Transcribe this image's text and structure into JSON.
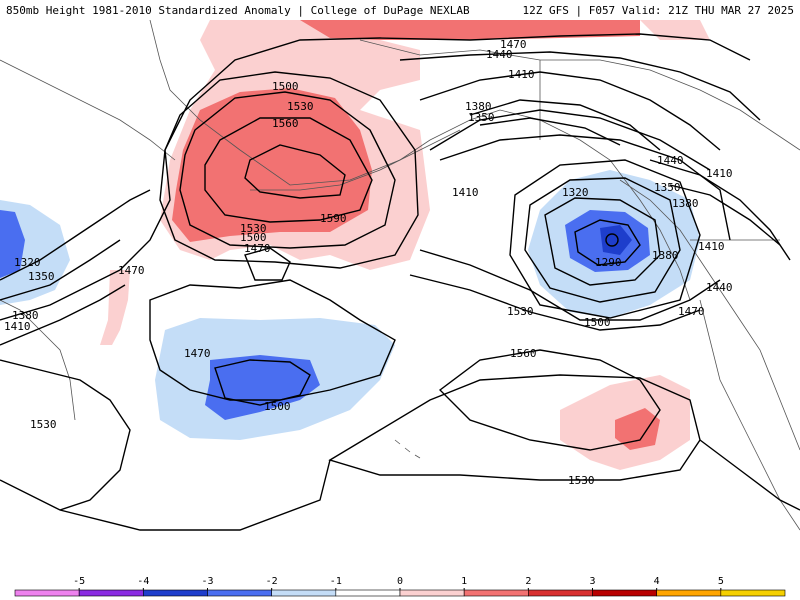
{
  "header": {
    "title": "850mb Height 1981-2010 Standardized Anomaly | College of DuPage NEXLAB",
    "run_info": "12Z GFS | F057 Valid: 21Z THU MAR 27 2025"
  },
  "colors": {
    "neg5": "#ee82ee",
    "neg4": "#8a2be2",
    "neg3": "#1e3ecc",
    "neg2": "#4a6ef0",
    "neg1": "#c4ddf7",
    "zero": "#ffffff",
    "pos1": "#fbd0d0",
    "pos2": "#f27272",
    "pos3": "#d83030",
    "pos4": "#b80000",
    "pos5": "#ffa500",
    "pos6": "#f5d000"
  },
  "contour_labels": [
    {
      "id": "c1470-top",
      "text": "1470"
    },
    {
      "id": "c1440-top",
      "text": "1440"
    },
    {
      "id": "c1410-top",
      "text": "1410"
    },
    {
      "id": "c1500-nw",
      "text": "1500"
    },
    {
      "id": "c1530-nw",
      "text": "1530"
    },
    {
      "id": "c1560-nw",
      "text": "1560"
    },
    {
      "id": "c1590-nw",
      "text": "1590"
    },
    {
      "id": "c1530-mid",
      "text": "1530"
    },
    {
      "id": "c1500-mid",
      "text": "1500"
    },
    {
      "id": "c1470-mid",
      "text": "1470"
    },
    {
      "id": "c1380-ne",
      "text": "1380"
    },
    {
      "id": "c1350-ne",
      "text": "1350"
    },
    {
      "id": "c1410-ne",
      "text": "1410"
    },
    {
      "id": "c1320-low",
      "text": "1320"
    },
    {
      "id": "c1350-low",
      "text": "1350"
    },
    {
      "id": "c1380-coast",
      "text": "1380"
    },
    {
      "id": "c1290-low",
      "text": "1290"
    },
    {
      "id": "c1380-low",
      "text": "1380"
    },
    {
      "id": "c1410-coast",
      "text": "1410"
    },
    {
      "id": "c1440-coast",
      "text": "1440"
    },
    {
      "id": "c1440-east",
      "text": "1440"
    },
    {
      "id": "c1410-east",
      "text": "1410"
    },
    {
      "id": "c1470-coast",
      "text": "1470"
    },
    {
      "id": "c1530-center",
      "text": "1530"
    },
    {
      "id": "c1500-center",
      "text": "1500"
    },
    {
      "id": "c1560-center",
      "text": "1560"
    },
    {
      "id": "c1470-west",
      "text": "1470"
    },
    {
      "id": "c1320-west",
      "text": "1320"
    },
    {
      "id": "c1350-west",
      "text": "1350"
    },
    {
      "id": "c1380-west",
      "text": "1380"
    },
    {
      "id": "c1410-west",
      "text": "1410"
    },
    {
      "id": "c1470-hawaii",
      "text": "1470"
    },
    {
      "id": "c1500-hawaii",
      "text": "1500"
    },
    {
      "id": "c1530-sw",
      "text": "1530"
    },
    {
      "id": "c1530-south",
      "text": "1530"
    }
  ],
  "legend": {
    "ticks": [
      "-5",
      "-4",
      "-3",
      "-2",
      "-1",
      "0",
      "1",
      "2",
      "3",
      "4",
      "5"
    ]
  }
}
